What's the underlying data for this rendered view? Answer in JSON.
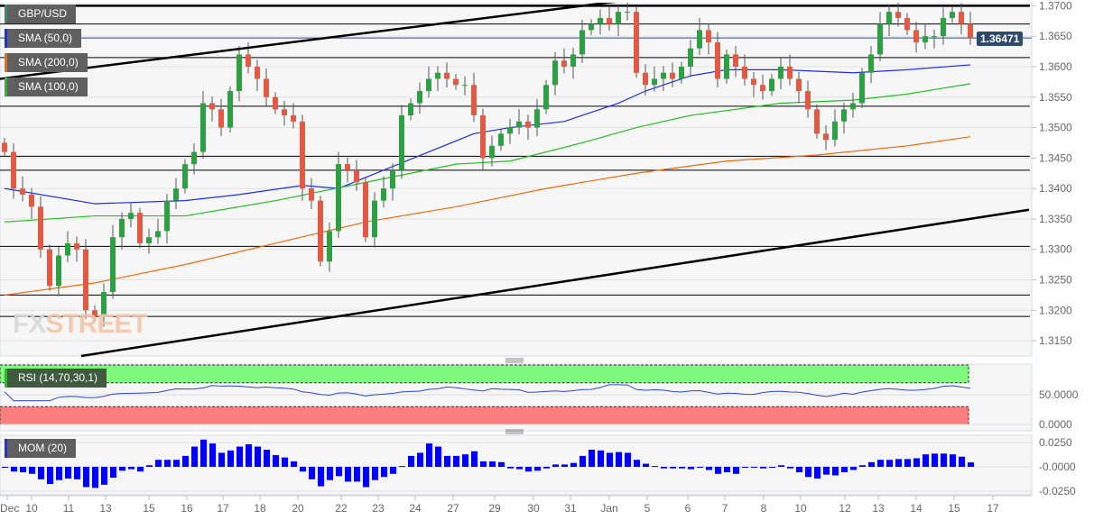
{
  "chart_data": {
    "type": "candlestick",
    "title": "GBP/USD",
    "last_price_label": "1.36471",
    "price_axis": {
      "ylim": [
        1.3125,
        1.3705
      ],
      "ticks": [
        "1.3700",
        "1.3650",
        "1.3600",
        "1.3550",
        "1.3500",
        "1.3450",
        "1.3400",
        "1.3350",
        "1.3300",
        "1.3250",
        "1.3200",
        "1.3150"
      ]
    },
    "closes": [
      1.346,
      1.34,
      1.339,
      1.337,
      1.33,
      1.324,
      1.329,
      1.331,
      1.33,
      1.32,
      1.319,
      1.323,
      1.332,
      1.335,
      1.336,
      1.331,
      1.332,
      1.333,
      1.338,
      1.34,
      1.344,
      1.346,
      1.354,
      1.353,
      1.35,
      1.356,
      1.362,
      1.36,
      1.358,
      1.355,
      1.353,
      1.352,
      1.351,
      1.34,
      1.338,
      1.328,
      1.333,
      1.344,
      1.343,
      1.341,
      1.332,
      1.338,
      1.34,
      1.343,
      1.352,
      1.354,
      1.356,
      1.358,
      1.359,
      1.358,
      1.357,
      1.357,
      1.352,
      1.345,
      1.347,
      1.349,
      1.35,
      1.351,
      1.35,
      1.353,
      1.357,
      1.361,
      1.36,
      1.362,
      1.366,
      1.367,
      1.368,
      1.367,
      1.369,
      1.369,
      1.359,
      1.357,
      1.358,
      1.359,
      1.358,
      1.36,
      1.363,
      1.366,
      1.364,
      1.358,
      1.362,
      1.36,
      1.358,
      1.357,
      1.356,
      1.358,
      1.36,
      1.358,
      1.356,
      1.353,
      1.349,
      1.348,
      1.351,
      1.353,
      1.354,
      1.359,
      1.362,
      1.367,
      1.369,
      1.368,
      1.366,
      1.364,
      1.365,
      1.365,
      1.368,
      1.369,
      1.367,
      1.3647
    ],
    "sma": [
      {
        "name": "SMA (50,0)",
        "color": "#1a2ef0",
        "points": [
          [
            0,
            1.34
          ],
          [
            10,
            1.3375
          ],
          [
            20,
            1.338
          ],
          [
            26,
            1.339
          ],
          [
            33,
            1.3405
          ],
          [
            37,
            1.34
          ],
          [
            42,
            1.343
          ],
          [
            47,
            1.346
          ],
          [
            52,
            1.349
          ],
          [
            56,
            1.35
          ],
          [
            62,
            1.351
          ],
          [
            68,
            1.354
          ],
          [
            71,
            1.356
          ],
          [
            76,
            1.3585
          ],
          [
            80,
            1.3595
          ],
          [
            86,
            1.3595
          ],
          [
            94,
            1.359
          ],
          [
            100,
            1.3595
          ],
          [
            107,
            1.3603
          ]
        ]
      },
      {
        "name": "SMA (200,0)",
        "color": "#f06a0c",
        "points": [
          [
            0,
            1.3225
          ],
          [
            10,
            1.3245
          ],
          [
            20,
            1.3275
          ],
          [
            30,
            1.331
          ],
          [
            40,
            1.3345
          ],
          [
            50,
            1.337
          ],
          [
            60,
            1.34
          ],
          [
            70,
            1.3425
          ],
          [
            80,
            1.3445
          ],
          [
            90,
            1.3455
          ],
          [
            100,
            1.347
          ],
          [
            107,
            1.3485
          ]
        ]
      },
      {
        "name": "SMA (100,0)",
        "color": "#22c022",
        "points": [
          [
            0,
            1.3345
          ],
          [
            10,
            1.3355
          ],
          [
            20,
            1.3355
          ],
          [
            30,
            1.338
          ],
          [
            40,
            1.341
          ],
          [
            50,
            1.344
          ],
          [
            56,
            1.3445
          ],
          [
            64,
            1.3475
          ],
          [
            70,
            1.35
          ],
          [
            76,
            1.352
          ],
          [
            86,
            1.354
          ],
          [
            94,
            1.3545
          ],
          [
            100,
            1.3555
          ],
          [
            107,
            1.3572
          ]
        ]
      }
    ],
    "horizontal_levels": [
      1.37,
      1.367,
      1.3615,
      1.3535,
      1.3453,
      1.343,
      1.3305,
      1.3225,
      1.319
    ],
    "trendlines": [
      [
        [
          -0.5,
          1.358
        ],
        [
          69.5,
          1.371
        ]
      ],
      [
        [
          8.5,
          1.3125
        ],
        [
          113.5,
          1.3365
        ]
      ]
    ],
    "x_ticks": [
      [
        "Dec",
        0.3
      ],
      [
        "10",
        3
      ],
      [
        "11",
        7.1
      ],
      [
        "13",
        11.2
      ],
      [
        "15",
        16
      ],
      [
        "16",
        20.2
      ],
      [
        "17",
        24.2
      ],
      [
        "18",
        28.3
      ],
      [
        "20",
        32.5
      ],
      [
        "22",
        37.3
      ],
      [
        "23",
        41.4
      ],
      [
        "24",
        45.5
      ],
      [
        "27",
        49.7
      ],
      [
        "29",
        54.3
      ],
      [
        "30",
        58.6
      ],
      [
        "31",
        62.7
      ],
      [
        "Jan",
        67
      ],
      [
        "5",
        71.2
      ],
      [
        "6",
        75.7
      ],
      [
        "7",
        79.8
      ],
      [
        "8",
        84.1
      ],
      [
        "10",
        88.2
      ],
      [
        "12",
        93.1
      ],
      [
        "13",
        96.8
      ],
      [
        "14",
        101
      ],
      [
        "15",
        105.2
      ],
      [
        "17",
        109.5
      ]
    ],
    "rsi": {
      "label": "RSI (14,70,30,1)",
      "ticks": [
        "50.0000",
        "0.0000"
      ],
      "upper": 70,
      "lower": 30
    },
    "mom": {
      "label": "MOM (20)",
      "ticks": [
        "0.0250",
        "-0.0000",
        "-0.0250"
      ]
    }
  },
  "colors": {
    "up": "#2ea043",
    "down": "#e05a44",
    "bg": "#f6f6f6"
  }
}
